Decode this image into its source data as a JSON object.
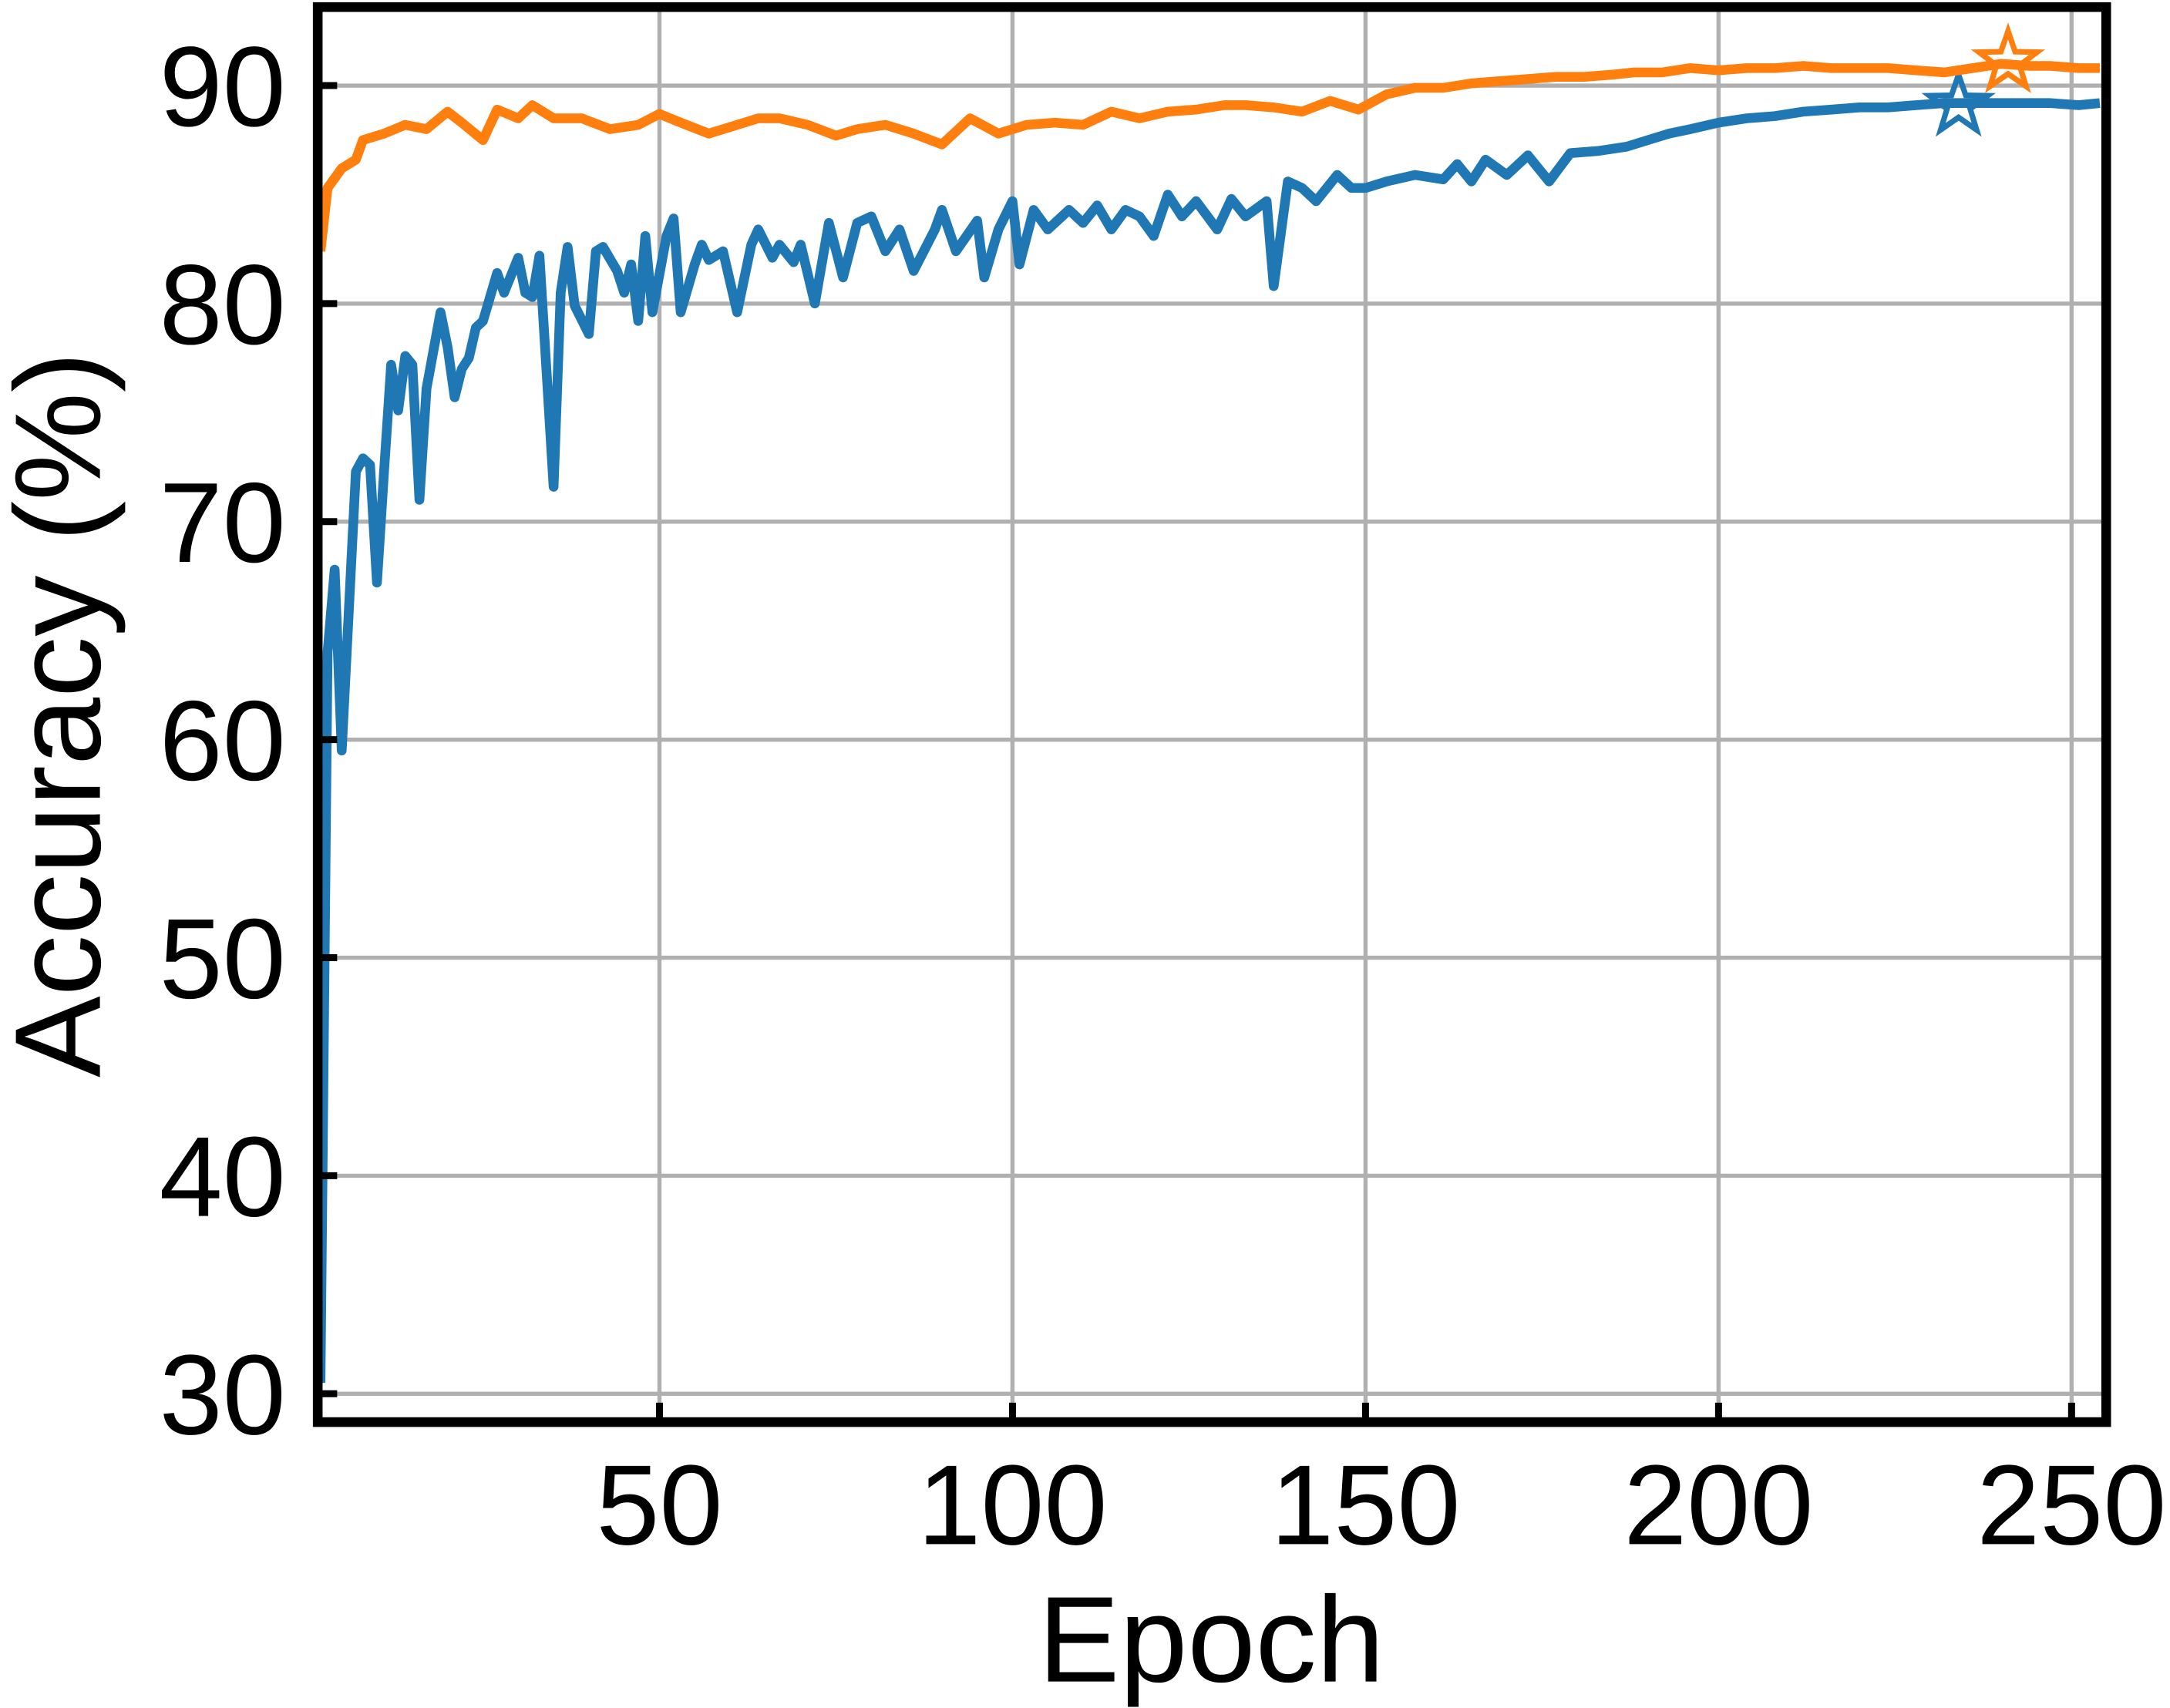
{
  "chart_data": {
    "type": "line",
    "x_label": "Epoch",
    "y_label": "Accuracy (%)",
    "xlim": [
      1.6,
      254.9
    ],
    "ylim": [
      28.7,
      93.6
    ],
    "xticks": [
      50,
      100,
      150,
      200,
      250
    ],
    "yticks": [
      30,
      40,
      50,
      60,
      70,
      80,
      90
    ],
    "grid": true,
    "series": [
      {
        "color": "#1f77b4",
        "x": [
          2,
          3,
          4,
          5,
          7,
          8,
          9,
          10,
          11,
          12,
          13,
          14,
          15,
          16,
          17,
          19,
          20,
          21,
          22,
          23,
          24,
          25,
          27,
          28,
          30,
          31,
          32,
          33,
          35,
          36,
          37,
          38,
          40,
          41,
          42,
          44,
          45,
          46,
          47,
          48,
          49,
          51,
          52,
          53,
          55,
          56,
          57,
          59,
          61,
          63,
          64,
          66,
          67,
          69,
          70,
          72,
          74,
          76,
          78,
          80,
          82,
          84,
          86,
          89,
          90,
          92,
          95,
          96,
          98,
          100,
          101,
          103,
          105,
          108,
          110,
          112,
          114,
          116,
          118,
          120,
          122,
          124,
          126,
          129,
          131,
          133,
          136,
          137,
          139,
          141,
          143,
          146,
          148,
          150,
          153,
          157,
          161,
          163,
          165,
          167,
          170,
          173,
          176,
          179,
          183,
          187,
          190,
          193,
          196,
          200,
          204,
          208,
          212,
          216,
          220,
          224,
          228,
          232,
          236,
          240,
          244,
          247,
          251,
          254
        ],
        "values": [
          30.5,
          64.0,
          67.8,
          59.5,
          72.3,
          72.9,
          72.6,
          67.2,
          72.3,
          77.2,
          75.1,
          77.6,
          77.2,
          71.0,
          76.1,
          79.6,
          78.0,
          75.7,
          77.0,
          77.5,
          78.9,
          79.2,
          81.4,
          80.5,
          82.1,
          80.5,
          80.3,
          82.2,
          71.6,
          80.5,
          82.6,
          79.9,
          78.6,
          82.4,
          82.6,
          81.5,
          80.5,
          81.8,
          79.2,
          83.1,
          79.6,
          83.1,
          83.9,
          79.6,
          81.8,
          82.7,
          82.0,
          82.4,
          79.6,
          82.7,
          83.4,
          82.1,
          82.7,
          81.9,
          82.7,
          80.0,
          83.7,
          81.2,
          83.7,
          84.0,
          82.4,
          83.4,
          81.5,
          83.4,
          84.3,
          82.4,
          83.8,
          81.2,
          83.4,
          84.7,
          81.8,
          84.3,
          83.4,
          84.3,
          83.7,
          84.5,
          83.4,
          84.3,
          84.0,
          83.1,
          85.0,
          84.0,
          84.7,
          83.4,
          84.8,
          84.0,
          84.7,
          80.8,
          85.6,
          85.3,
          84.7,
          85.9,
          85.3,
          85.3,
          85.6,
          85.9,
          85.7,
          86.4,
          85.6,
          86.6,
          85.9,
          86.8,
          85.6,
          86.9,
          87.0,
          87.2,
          87.5,
          87.8,
          88.0,
          88.3,
          88.5,
          88.6,
          88.8,
          88.9,
          89.0,
          89.0,
          89.1,
          89.2,
          89.2,
          89.2,
          89.2,
          89.2,
          89.1,
          89.2
        ],
        "star": {
          "x": 234,
          "y": 89.1
        }
      },
      {
        "color": "#ff7f0e",
        "x": [
          2,
          3,
          5,
          7,
          8,
          11,
          14,
          17,
          20,
          22,
          25,
          27,
          30,
          32,
          35,
          39,
          43,
          47,
          50,
          53,
          57,
          61,
          64,
          67,
          71,
          75,
          78,
          82,
          86,
          90,
          94,
          98,
          102,
          106,
          110,
          114,
          118,
          122,
          126,
          130,
          133,
          137,
          141,
          145,
          149,
          153,
          157,
          161,
          165,
          169,
          173,
          177,
          181,
          185,
          188,
          192,
          196,
          200,
          204,
          208,
          212,
          216,
          220,
          224,
          228,
          232,
          236,
          240,
          244,
          247,
          251,
          254
        ],
        "values": [
          82.4,
          85.3,
          86.2,
          86.6,
          87.5,
          87.8,
          88.2,
          88.0,
          88.8,
          88.3,
          87.5,
          88.9,
          88.5,
          89.1,
          88.5,
          88.5,
          88.0,
          88.2,
          88.7,
          88.3,
          87.8,
          88.2,
          88.5,
          88.5,
          88.2,
          87.7,
          88.0,
          88.2,
          87.8,
          87.3,
          88.5,
          87.8,
          88.2,
          88.3,
          88.2,
          88.8,
          88.5,
          88.8,
          88.9,
          89.1,
          89.1,
          89.0,
          88.8,
          89.3,
          88.9,
          89.6,
          89.9,
          89.9,
          90.1,
          90.2,
          90.3,
          90.4,
          90.4,
          90.5,
          90.6,
          90.6,
          90.8,
          90.7,
          90.8,
          90.8,
          90.9,
          90.8,
          90.8,
          90.8,
          90.7,
          90.6,
          90.8,
          91.0,
          90.9,
          90.9,
          90.8,
          90.8
        ],
        "star": {
          "x": 241,
          "y": 91.1
        }
      }
    ]
  }
}
